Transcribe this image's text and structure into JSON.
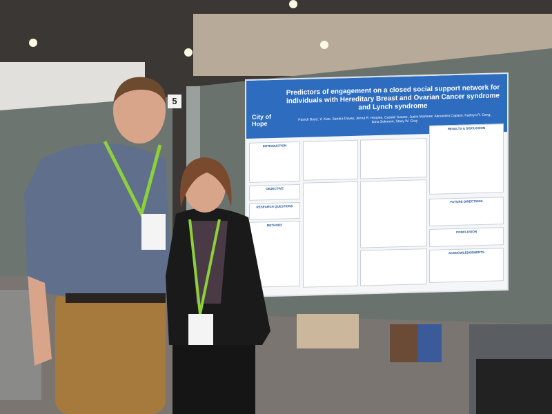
{
  "booth_number": "5",
  "poster": {
    "logo": "City of Hope",
    "title": "Predictors of engagement on a closed social support network for individuals with Hereditary Breast and Ovarian Cancer syndrome and Lynch syndrome",
    "authors": "Patrick Boyd, Yi Xiao, Sandra Davey, Jenna R. Hoopes, Cassiel Suarez, Justin Martinez, Alexandra Capaso, Kathryn R. Ceng, Ilana Solomon, Stacy W. Gray",
    "left_sections": [
      "INTRODUCTION",
      "OBJECTIVE",
      "RESEARCH QUESTIONS",
      "METHODS"
    ],
    "right_sections": [
      "RESULTS & DISCUSSION",
      "FUTURE DIRECTIONS",
      "CONCLUSION",
      "ACKNOWLEDGEMENTS"
    ]
  }
}
